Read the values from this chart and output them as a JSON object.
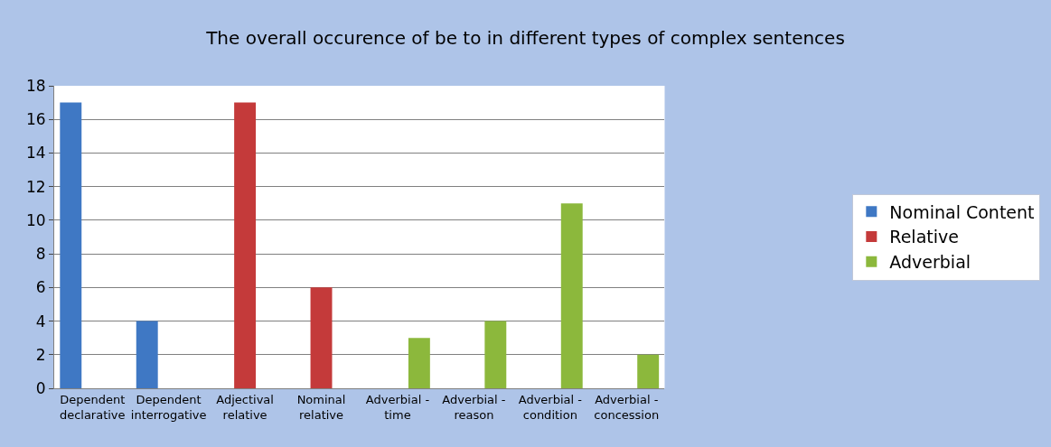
{
  "chart_data": {
    "type": "bar",
    "title": "The overall occurence of be to in different types of complex sentences",
    "categories": [
      "Dependent declarative",
      "Dependent interrogative",
      "Adjectival relative",
      "Nominal relative",
      "Adverbial - time",
      "Adverbial - reason",
      "Adverbial - condition",
      "Adverbial - concession"
    ],
    "series": [
      {
        "name": "Nominal Content",
        "color": "#3f78c4",
        "values": [
          17,
          4,
          null,
          null,
          null,
          null,
          null,
          null
        ]
      },
      {
        "name": "Relative",
        "color": "#c43a3a",
        "values": [
          null,
          null,
          17,
          6,
          null,
          null,
          null,
          null
        ]
      },
      {
        "name": "Adverbial",
        "color": "#8cb83c",
        "values": [
          null,
          null,
          null,
          null,
          3,
          4,
          11,
          2
        ]
      }
    ],
    "ylim": [
      0,
      18
    ],
    "yticks": [
      0,
      2,
      4,
      6,
      8,
      10,
      12,
      14,
      16,
      18
    ],
    "grid": "y",
    "legend": "right"
  }
}
